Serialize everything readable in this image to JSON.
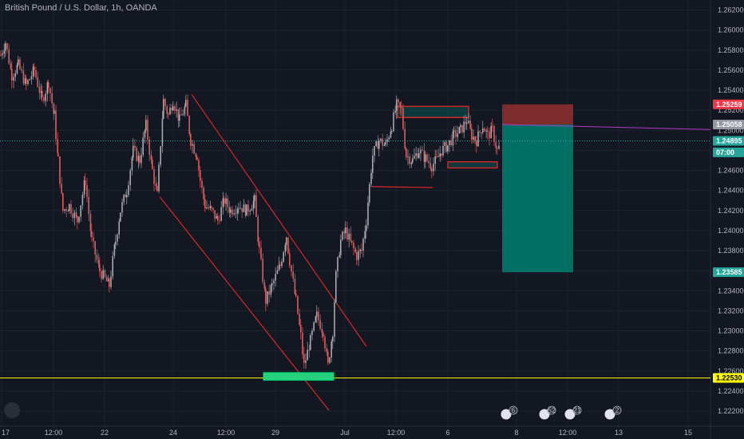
{
  "header": {
    "title": "British Pound / U.S. Dollar, 1h, OANDA"
  },
  "colors": {
    "background": "#131722",
    "grid": "#1e222d",
    "up": "#a7a9ac",
    "down": "#e05b5b",
    "channel": "#d62828",
    "support": "#ffff00",
    "green_zone": "#26d07c",
    "stop_zone": "#8b2e2e",
    "target_zone": "#00796b",
    "current_price": "#26a69a",
    "entry_line": "#b03cc7",
    "axis_text": "#b2b5be"
  },
  "chart_data": {
    "type": "candlestick",
    "title": "British Pound / U.S. Dollar, 1h, OANDA",
    "ylim": [
      1.222,
      1.263
    ],
    "y_ticks": [
      "1.26200",
      "1.26000",
      "1.25800",
      "1.25600",
      "1.25400",
      "1.25200",
      "1.25000",
      "1.24800",
      "1.24600",
      "1.24400",
      "1.24200",
      "1.24000",
      "1.23800",
      "1.23600",
      "1.23400",
      "1.23200",
      "1.23000",
      "1.22800",
      "1.22600",
      "1.22400",
      "1.22200"
    ],
    "x_ticks": [
      "17",
      "12:00",
      "22",
      "24",
      "12:00",
      "29",
      "Jul",
      "12:00",
      "6",
      "8",
      "12:00",
      "13",
      "15"
    ],
    "price_tags": [
      {
        "label": "1.25259",
        "value": 1.25259,
        "bg": "#f23645",
        "fg": "#ffffff"
      },
      {
        "label": "1.25058",
        "value": 1.25058,
        "bg": "#9598a1",
        "fg": "#ffffff"
      },
      {
        "label": "1.24895",
        "value": 1.24895,
        "bg": "#26a69a",
        "fg": "#ffffff"
      },
      {
        "label": "07:00",
        "value": 1.2478,
        "bg": "#26a69a",
        "fg": "#ffffff"
      },
      {
        "label": "1.23585",
        "value": 1.23585,
        "bg": "#26a69a",
        "fg": "#ffffff"
      },
      {
        "label": "1.22530",
        "value": 1.2253,
        "bg": "#ffff00",
        "fg": "#000000"
      }
    ],
    "levels": {
      "support": 1.2253,
      "current": 1.24895,
      "entry": 1.25058,
      "stop": 1.25259,
      "target": 1.23585
    },
    "price_path": [
      [
        0,
        1.2575
      ],
      [
        6,
        1.2588
      ],
      [
        14,
        1.2555
      ],
      [
        22,
        1.2565
      ],
      [
        32,
        1.2545
      ],
      [
        42,
        1.256
      ],
      [
        52,
        1.253
      ],
      [
        60,
        1.2548
      ],
      [
        67,
        1.2515
      ],
      [
        72,
        1.247
      ],
      [
        78,
        1.242
      ],
      [
        86,
        1.2425
      ],
      [
        96,
        1.241
      ],
      [
        106,
        1.245
      ],
      [
        114,
        1.239
      ],
      [
        124,
        1.236
      ],
      [
        136,
        1.2345
      ],
      [
        144,
        1.239
      ],
      [
        150,
        1.242
      ],
      [
        158,
        1.244
      ],
      [
        166,
        1.248
      ],
      [
        174,
        1.247
      ],
      [
        182,
        1.2505
      ],
      [
        190,
        1.246
      ],
      [
        196,
        1.2435
      ],
      [
        204,
        1.253
      ],
      [
        210,
        1.2515
      ],
      [
        216,
        1.253
      ],
      [
        224,
        1.251
      ],
      [
        232,
        1.2525
      ],
      [
        238,
        1.249
      ],
      [
        246,
        1.2475
      ],
      [
        250,
        1.245
      ],
      [
        256,
        1.2425
      ],
      [
        264,
        1.242
      ],
      [
        272,
        1.241
      ],
      [
        280,
        1.243
      ],
      [
        288,
        1.242
      ],
      [
        298,
        1.2425
      ],
      [
        308,
        1.242
      ],
      [
        318,
        1.243
      ],
      [
        324,
        1.238
      ],
      [
        332,
        1.233
      ],
      [
        340,
        1.2345
      ],
      [
        350,
        1.2365
      ],
      [
        358,
        1.2395
      ],
      [
        362,
        1.237
      ],
      [
        370,
        1.233
      ],
      [
        376,
        1.2295
      ],
      [
        380,
        1.2265
      ],
      [
        388,
        1.229
      ],
      [
        396,
        1.2315
      ],
      [
        404,
        1.23
      ],
      [
        410,
        1.2265
      ],
      [
        416,
        1.23
      ],
      [
        420,
        1.2355
      ],
      [
        426,
        1.239
      ],
      [
        432,
        1.24
      ],
      [
        440,
        1.2385
      ],
      [
        446,
        1.2375
      ],
      [
        452,
        1.238
      ],
      [
        458,
        1.241
      ],
      [
        462,
        1.2445
      ],
      [
        466,
        1.2475
      ],
      [
        474,
        1.249
      ],
      [
        482,
        1.2485
      ],
      [
        490,
        1.2505
      ],
      [
        496,
        1.2525
      ],
      [
        502,
        1.252
      ],
      [
        508,
        1.2475
      ],
      [
        516,
        1.247
      ],
      [
        524,
        1.248
      ],
      [
        532,
        1.2472
      ],
      [
        540,
        1.2465
      ],
      [
        546,
        1.247
      ],
      [
        552,
        1.248
      ],
      [
        560,
        1.2485
      ],
      [
        568,
        1.2495
      ],
      [
        576,
        1.25
      ],
      [
        584,
        1.251
      ],
      [
        590,
        1.2495
      ],
      [
        596,
        1.249
      ],
      [
        604,
        1.2505
      ],
      [
        610,
        1.2495
      ],
      [
        616,
        1.25
      ],
      [
        622,
        1.248
      ],
      [
        626,
        1.2485
      ]
    ],
    "annotations": {
      "upper_channel": [
        [
          240,
          1.25358
        ],
        [
          459,
          1.22845
        ]
      ],
      "lower_channel": [
        [
          200,
          1.24338
        ],
        [
          412,
          1.22208
        ]
      ],
      "support_rect": {
        "x1": 330,
        "x2": 418,
        "y_top": 1.22583,
        "y_bottom": 1.22508
      },
      "box_top": {
        "x1": 498,
        "x2": 587,
        "y_top": 1.25239,
        "y_bottom": 1.25128
      },
      "box_bottom": {
        "x1": 561,
        "x2": 623,
        "y_top": 1.24686,
        "y_bottom": 1.24625
      },
      "red_line": [
        [
          466,
          1.24439
        ],
        [
          542,
          1.24429
        ]
      ],
      "stop_zone": {
        "x1": 629,
        "x2": 718
      },
      "entry_line_end": [
        890,
        1.25008
      ]
    },
    "events_bar": [
      "6",
      "52",
      "21",
      "2"
    ]
  }
}
